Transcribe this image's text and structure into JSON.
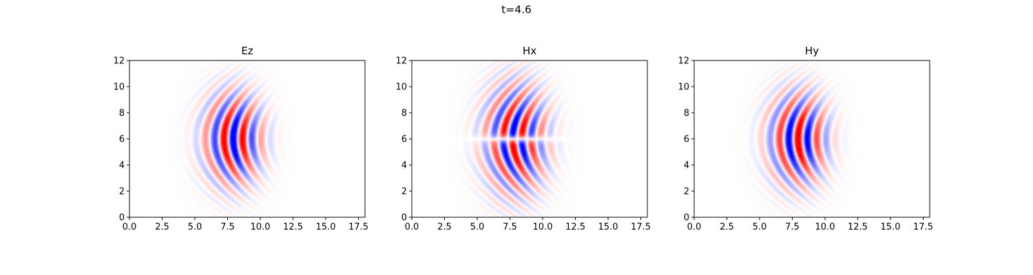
{
  "figure": {
    "suptitle": "t=4.6"
  },
  "chart_data": [
    {
      "type": "heatmap",
      "title": "Ez",
      "colormap": "bwr",
      "xlim": [
        0,
        18
      ],
      "ylim": [
        0,
        12
      ],
      "xticks": [
        "0.0",
        "2.5",
        "5.0",
        "7.5",
        "10.0",
        "12.5",
        "15.0",
        "17.5"
      ],
      "yticks": [
        "0",
        "2",
        "4",
        "6",
        "8",
        "10",
        "12"
      ],
      "field": {
        "kind": "gaussian_beam",
        "x_center": 7.9,
        "x_sigma": 1.4,
        "y_center": 6.0,
        "y_sigma": 2.2,
        "wavelength": 1.45,
        "phase": 0.2,
        "curvature": 0.13,
        "split": false
      }
    },
    {
      "type": "heatmap",
      "title": "Hx",
      "colormap": "bwr",
      "xlim": [
        0,
        18
      ],
      "ylim": [
        0,
        12
      ],
      "xticks": [
        "0.0",
        "2.5",
        "5.0",
        "7.5",
        "10.0",
        "12.5",
        "15.0",
        "17.5"
      ],
      "yticks": [
        "0",
        "2",
        "4",
        "6",
        "8",
        "10",
        "12"
      ],
      "field": {
        "kind": "gaussian_beam",
        "x_center": 7.9,
        "x_sigma": 1.5,
        "y_center": 6.0,
        "y_sigma": 2.6,
        "wavelength": 1.45,
        "phase": 1.2,
        "curvature": 0.13,
        "split": true
      }
    },
    {
      "type": "heatmap",
      "title": "Hy",
      "colormap": "bwr",
      "xlim": [
        0,
        18
      ],
      "ylim": [
        0,
        12
      ],
      "xticks": [
        "0.0",
        "2.5",
        "5.0",
        "7.5",
        "10.0",
        "12.5",
        "15.0",
        "17.5"
      ],
      "yticks": [
        "0",
        "2",
        "4",
        "6",
        "8",
        "10",
        "12"
      ],
      "field": {
        "kind": "gaussian_beam",
        "x_center": 7.9,
        "x_sigma": 1.4,
        "y_center": 6.0,
        "y_sigma": 2.2,
        "wavelength": 1.45,
        "phase": 3.3,
        "curvature": 0.13,
        "split": false
      }
    }
  ]
}
